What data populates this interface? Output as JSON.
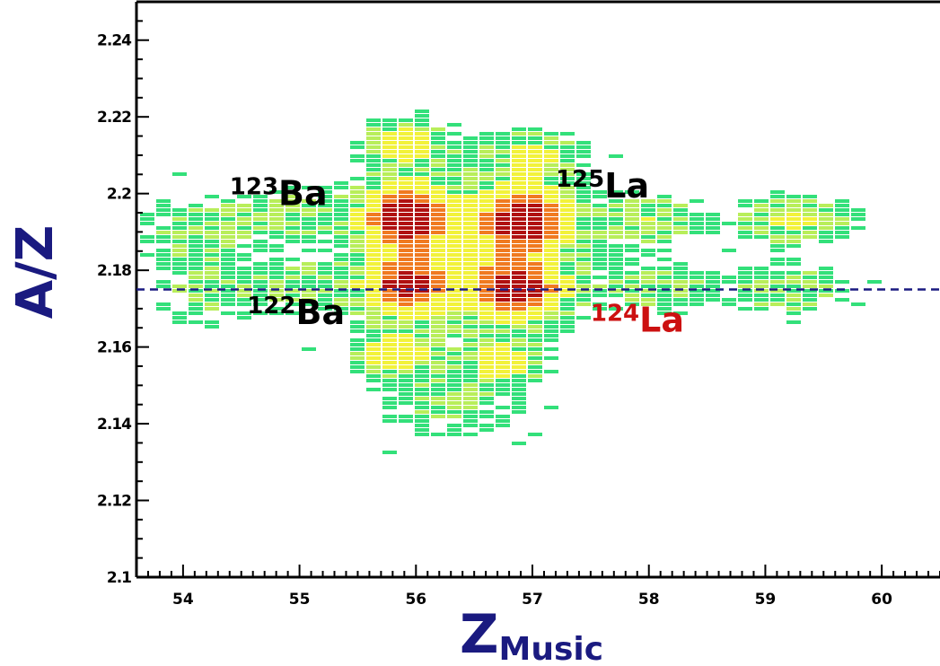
{
  "chart_data": {
    "type": "heatmap",
    "title": "",
    "xlabel": "Z",
    "xlabel_sub": "Music",
    "ylabel": "A/Z",
    "xlim": [
      53.6,
      60.5
    ],
    "ylim": [
      2.1,
      2.25
    ],
    "x_ticks": [
      54,
      55,
      56,
      57,
      58,
      59,
      60
    ],
    "x_tick_labels": [
      "54",
      "55",
      "56",
      "57",
      "58",
      "59",
      "60"
    ],
    "y_ticks": [
      2.1,
      2.12,
      2.14,
      2.16,
      2.18,
      2.2,
      2.22,
      2.24
    ],
    "y_tick_labels": [
      "2.1",
      "2.12",
      "2.14",
      "2.16",
      "2.18",
      "2.2",
      "2.22",
      "2.24"
    ],
    "reference_line": {
      "y": 2.175,
      "style": "dashed",
      "color": "#1a1a80"
    },
    "clusters": [
      {
        "x": 55.92,
        "y": 2.194,
        "peak": 1.0,
        "sx": 0.23,
        "sy": 0.0055
      },
      {
        "x": 56.95,
        "y": 2.193,
        "peak": 1.0,
        "sx": 0.25,
        "sy": 0.0055
      },
      {
        "x": 55.92,
        "y": 2.176,
        "peak": 0.85,
        "sx": 0.23,
        "sy": 0.005
      },
      {
        "x": 56.88,
        "y": 2.175,
        "peak": 0.9,
        "sx": 0.27,
        "sy": 0.005
      },
      {
        "x": 55.92,
        "y": 2.213,
        "peak": 0.45,
        "sx": 0.22,
        "sy": 0.004
      },
      {
        "x": 57.0,
        "y": 2.21,
        "peak": 0.35,
        "sx": 0.25,
        "sy": 0.004
      },
      {
        "x": 55.83,
        "y": 2.158,
        "peak": 0.5,
        "sx": 0.2,
        "sy": 0.004
      },
      {
        "x": 56.75,
        "y": 2.156,
        "peak": 0.45,
        "sx": 0.2,
        "sy": 0.004
      },
      {
        "x": 59.25,
        "y": 2.193,
        "peak": 0.35,
        "sx": 0.3,
        "sy": 0.004
      },
      {
        "x": 58.0,
        "y": 2.193,
        "peak": 0.3,
        "sx": 0.3,
        "sy": 0.004
      },
      {
        "x": 54.9,
        "y": 2.194,
        "peak": 0.25,
        "sx": 0.35,
        "sy": 0.004
      },
      {
        "x": 58.1,
        "y": 2.175,
        "peak": 0.25,
        "sx": 0.3,
        "sy": 0.004
      },
      {
        "x": 59.2,
        "y": 2.175,
        "peak": 0.28,
        "sx": 0.28,
        "sy": 0.004
      },
      {
        "x": 55.0,
        "y": 2.176,
        "peak": 0.25,
        "sx": 0.3,
        "sy": 0.004
      },
      {
        "x": 54.1,
        "y": 2.19,
        "peak": 0.18,
        "sx": 0.3,
        "sy": 0.006
      },
      {
        "x": 54.2,
        "y": 2.174,
        "peak": 0.15,
        "sx": 0.3,
        "sy": 0.006
      },
      {
        "x": 56.4,
        "y": 2.185,
        "peak": 0.3,
        "sx": 0.6,
        "sy": 0.014
      },
      {
        "x": 56.3,
        "y": 2.145,
        "peak": 0.15,
        "sx": 0.4,
        "sy": 0.006
      }
    ],
    "isotopes": [
      {
        "mass": "123",
        "symbol": "Ba",
        "x": 54.4,
        "y": 2.197,
        "color": "#000000"
      },
      {
        "mass": "125",
        "symbol": "La",
        "x": 57.2,
        "y": 2.199,
        "color": "#000000"
      },
      {
        "mass": "122",
        "symbol": "Ba",
        "x": 54.55,
        "y": 2.166,
        "color": "#000000"
      },
      {
        "mass": "124",
        "symbol": "La",
        "x": 57.5,
        "y": 2.164,
        "color": "#cc1111"
      }
    ],
    "colors": {
      "low": "#33e07a",
      "mid": "#f2f23a",
      "high": "#f07a20",
      "peak": "#b01010",
      "axis_label": "#1a1a80"
    },
    "grid": false,
    "legend": "none"
  }
}
